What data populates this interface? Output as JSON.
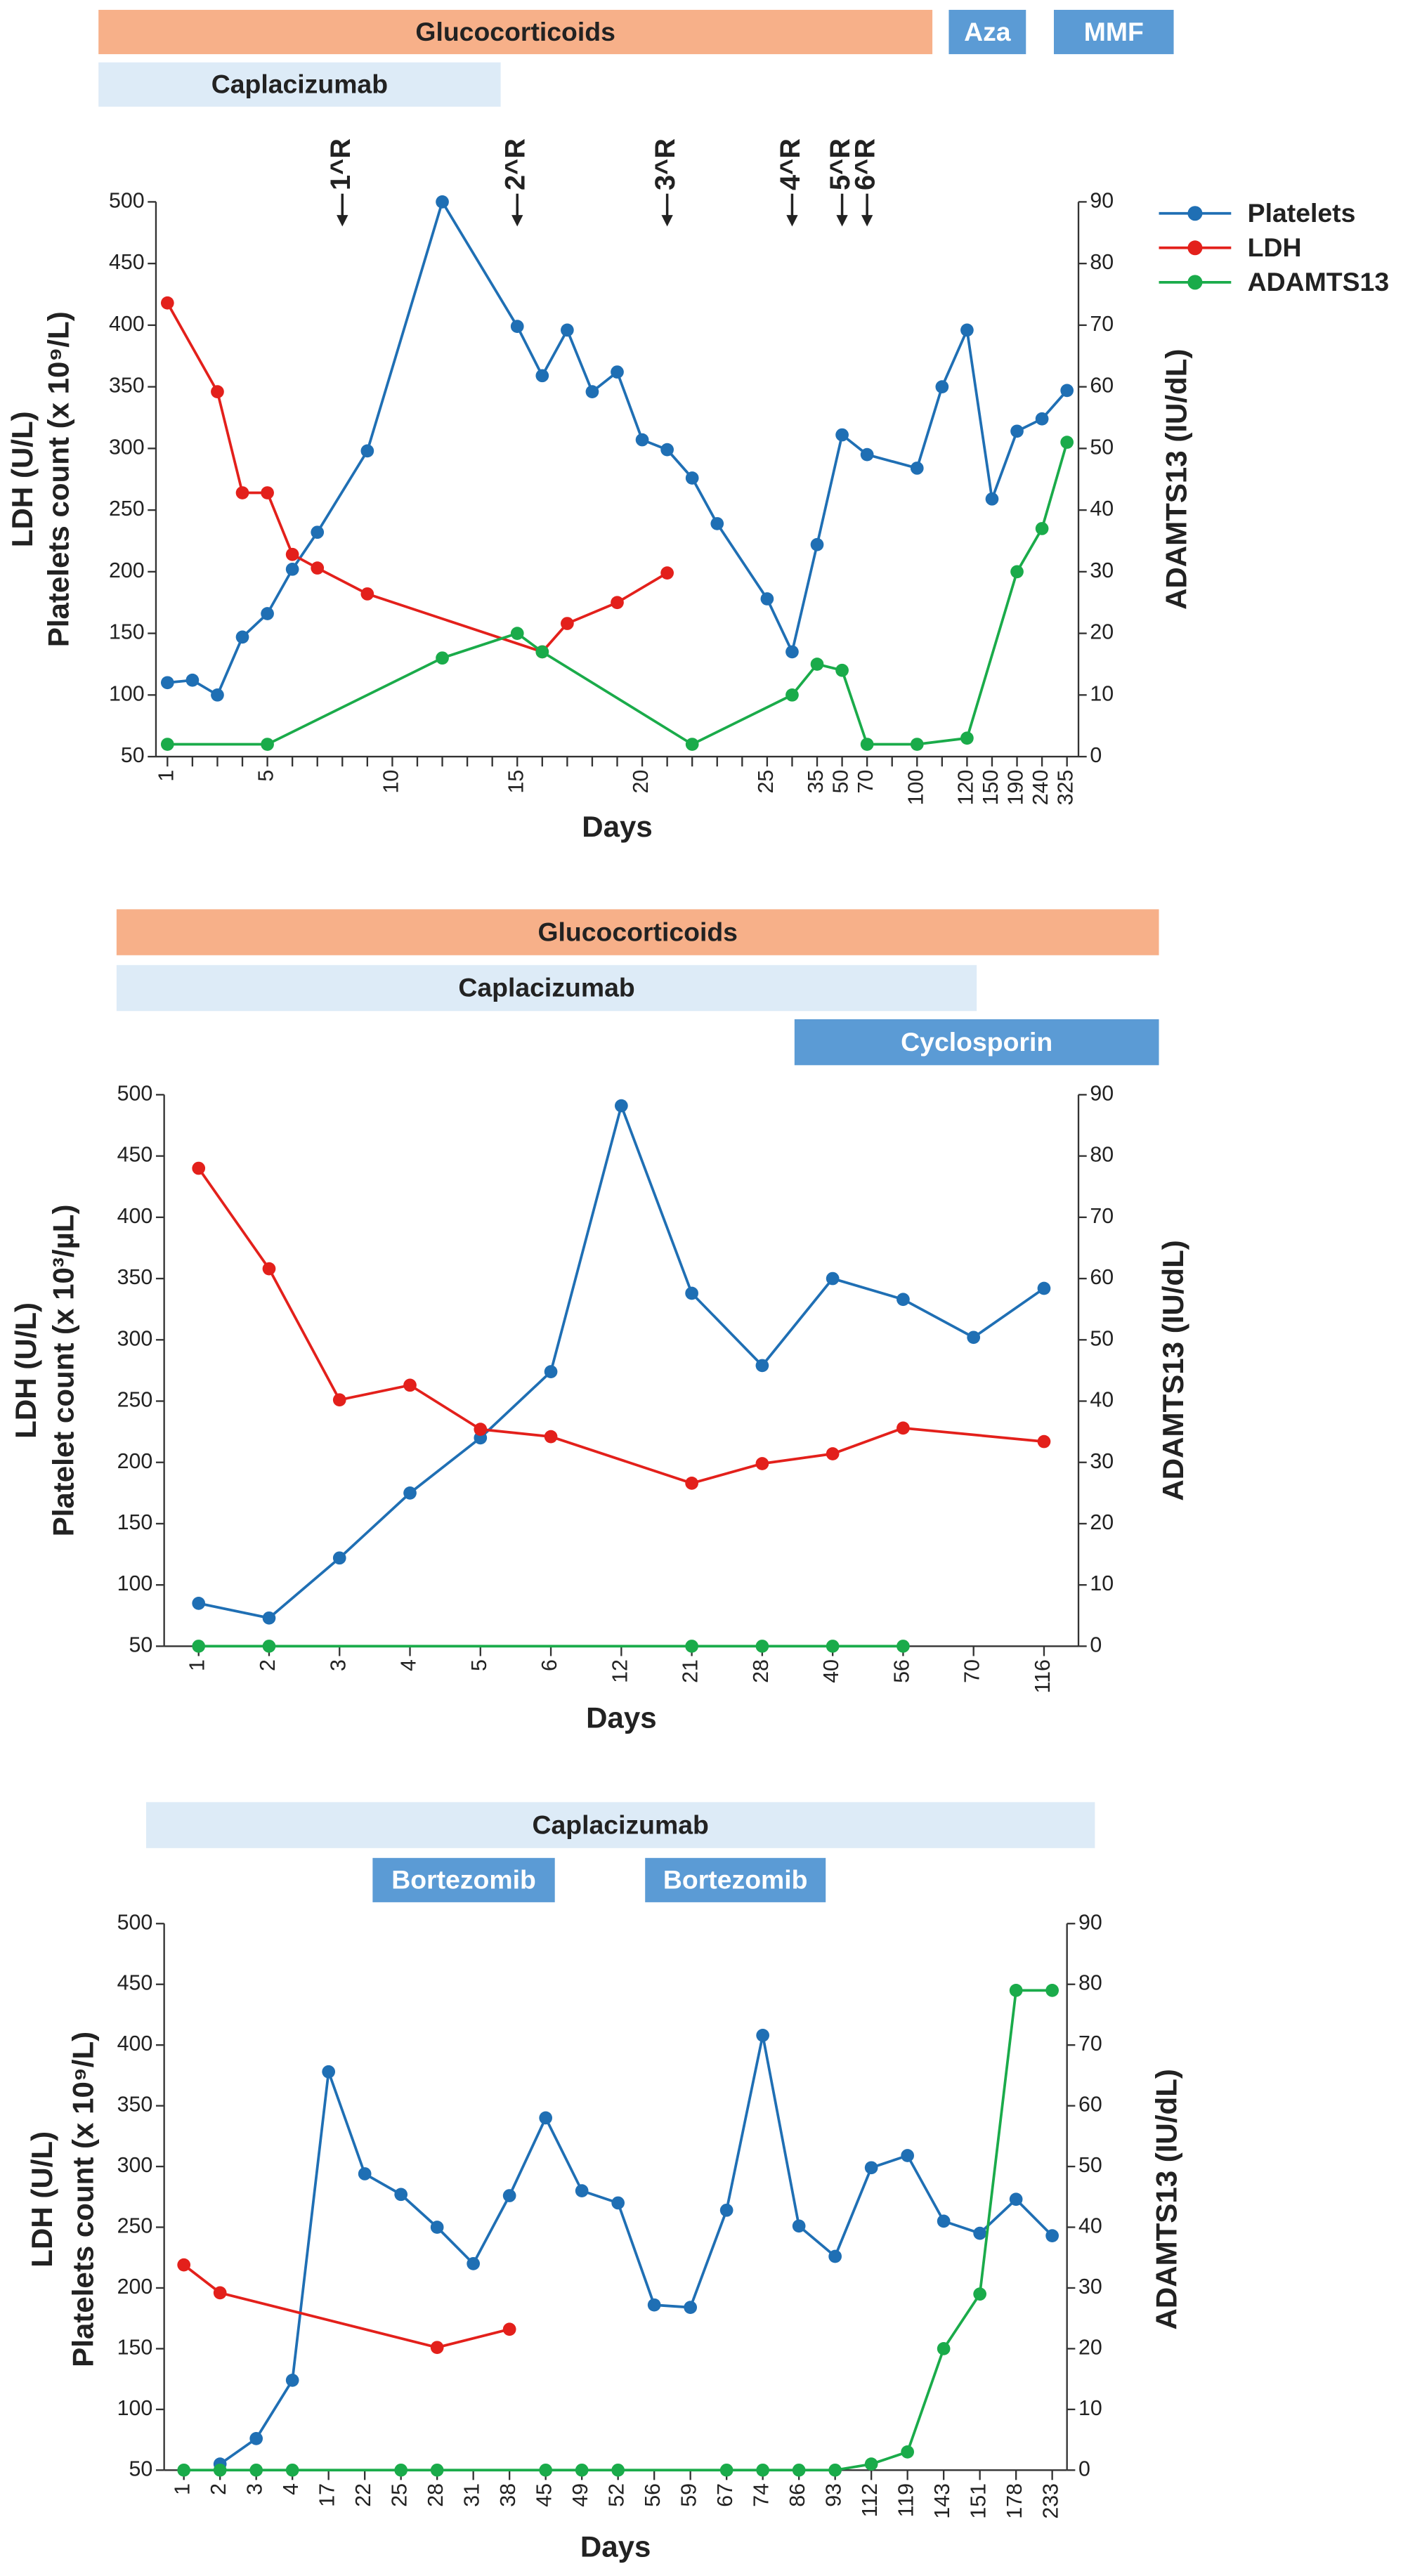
{
  "chart_data": [
    {
      "type": "line",
      "therapies": [
        {
          "label": "Glucocorticoids"
        },
        {
          "label": "Aza"
        },
        {
          "label": "MMF"
        },
        {
          "label": "Caplacizumab"
        }
      ],
      "annotations": [
        "1^R",
        "2^R",
        "3^R",
        "4^R",
        "5^R",
        "6^R"
      ],
      "categories": [
        "1",
        null,
        null,
        null,
        "5",
        null,
        null,
        null,
        null,
        "10",
        null,
        null,
        null,
        null,
        "15",
        null,
        null,
        null,
        null,
        "20",
        null,
        null,
        null,
        null,
        "25",
        null,
        "35",
        "50",
        "70",
        null,
        "100",
        null,
        "120",
        "150",
        "190",
        "240",
        "325"
      ],
      "xlabel": "Days",
      "ylabel": [
        "LDH (U/L)",
        "Platelets count (x 10⁹/L)"
      ],
      "y2label": "ADAMTS13 (IU/dL)",
      "ylim": [
        50,
        500
      ],
      "yticks": [
        50,
        100,
        150,
        200,
        250,
        300,
        350,
        400,
        450,
        500
      ],
      "y2lim": [
        0,
        90
      ],
      "y2ticks": [
        0,
        10,
        20,
        30,
        40,
        50,
        60,
        70,
        80,
        90
      ],
      "legend": "right",
      "series": [
        {
          "name": "Platelets",
          "color": "#1f6fb4",
          "values": [
            110,
            112,
            100,
            147,
            166,
            202,
            232,
            null,
            298,
            null,
            null,
            500,
            null,
            null,
            399,
            359,
            396,
            346,
            362,
            307,
            299,
            276,
            239,
            null,
            178,
            135,
            222,
            311,
            295,
            null,
            284,
            350,
            396,
            259,
            314,
            324,
            347
          ]
        },
        {
          "name": "LDH",
          "color": "#e3201b",
          "values": [
            418,
            null,
            346,
            264,
            264,
            214,
            203,
            null,
            182,
            null,
            null,
            null,
            null,
            null,
            null,
            135,
            158,
            null,
            175,
            null,
            199,
            null,
            null,
            null,
            null,
            null,
            null,
            null,
            null,
            null,
            null,
            null,
            null,
            null,
            null,
            null,
            null
          ]
        },
        {
          "name": "ADAMTS13",
          "color": "#1aab4a",
          "axis": "y2",
          "values": [
            2,
            null,
            null,
            null,
            2,
            null,
            null,
            null,
            null,
            null,
            null,
            16,
            null,
            null,
            20,
            17,
            null,
            null,
            null,
            null,
            null,
            2,
            null,
            null,
            null,
            10,
            15,
            14,
            2,
            null,
            2,
            null,
            3,
            null,
            30,
            37,
            51
          ]
        }
      ]
    },
    {
      "type": "line",
      "therapies": [
        {
          "label": "Glucocorticoids"
        },
        {
          "label": "Caplacizumab"
        },
        {
          "label": "Cyclosporin"
        }
      ],
      "categories": [
        "1",
        "2",
        "3",
        "4",
        "5",
        "6",
        "12",
        "21",
        "28",
        "40",
        "56",
        "70",
        "116"
      ],
      "xlabel": "Days",
      "ylabel": [
        "LDH (U/L)",
        "Platelet count (x 10³/µL)"
      ],
      "y2label": "ADAMTS13 (IU/dL)",
      "ylim": [
        50,
        500
      ],
      "yticks": [
        50,
        100,
        150,
        200,
        250,
        300,
        350,
        400,
        450,
        500
      ],
      "y2lim": [
        0,
        90
      ],
      "y2ticks": [
        0,
        10,
        20,
        30,
        40,
        50,
        60,
        70,
        80,
        90
      ],
      "series": [
        {
          "name": "Platelets",
          "color": "#1f6fb4",
          "values": [
            85,
            73,
            122,
            175,
            220,
            274,
            491,
            338,
            279,
            350,
            333,
            302,
            342
          ]
        },
        {
          "name": "LDH",
          "color": "#e3201b",
          "values": [
            440,
            358,
            251,
            263,
            227,
            221,
            null,
            183,
            199,
            207,
            228,
            null,
            217
          ]
        },
        {
          "name": "ADAMTS13",
          "color": "#1aab4a",
          "axis": "y2",
          "values": [
            0,
            0,
            null,
            null,
            null,
            null,
            null,
            0,
            0,
            0,
            0,
            null,
            null
          ]
        }
      ]
    },
    {
      "type": "line",
      "therapies": [
        {
          "label": "Caplacizumab"
        },
        {
          "label": "Bortezomib"
        },
        {
          "label": "Bortezomib"
        }
      ],
      "categories": [
        "1",
        "2",
        "3",
        "4",
        "17",
        "22",
        "25",
        "28",
        "31",
        "38",
        "45",
        "49",
        "52",
        "56",
        "59",
        "67",
        "74",
        "86",
        "93",
        "112",
        "119",
        "143",
        "151",
        "178",
        "233"
      ],
      "xlabel": "Days",
      "ylabel": [
        "LDH (U/L)",
        "Platelets count (x 10⁹/L)"
      ],
      "y2label": "ADAMTS13 (IU/dL)",
      "ylim": [
        50,
        500
      ],
      "yticks": [
        50,
        100,
        150,
        200,
        250,
        300,
        350,
        400,
        450,
        500
      ],
      "y2lim": [
        0,
        90
      ],
      "y2ticks": [
        0,
        10,
        20,
        30,
        40,
        50,
        60,
        70,
        80,
        90
      ],
      "series": [
        {
          "name": "Platelets",
          "color": "#1f6fb4",
          "values": [
            null,
            55,
            76,
            124,
            378,
            294,
            277,
            250,
            220,
            276,
            340,
            280,
            270,
            186,
            184,
            264,
            408,
            251,
            226,
            299,
            309,
            255,
            245,
            273,
            243
          ]
        },
        {
          "name": "LDH",
          "color": "#e3201b",
          "values": [
            219,
            196,
            null,
            null,
            null,
            null,
            null,
            151,
            null,
            166,
            null,
            null,
            null,
            null,
            null,
            null,
            null,
            null,
            null,
            null,
            null,
            null,
            null,
            null,
            null
          ]
        },
        {
          "name": "ADAMTS13",
          "color": "#1aab4a",
          "axis": "y2",
          "values": [
            0,
            0,
            0,
            0,
            null,
            null,
            0,
            0,
            null,
            null,
            0,
            0,
            0,
            null,
            null,
            0,
            0,
            0,
            0,
            1,
            3,
            20,
            29,
            79,
            79
          ]
        }
      ]
    }
  ]
}
